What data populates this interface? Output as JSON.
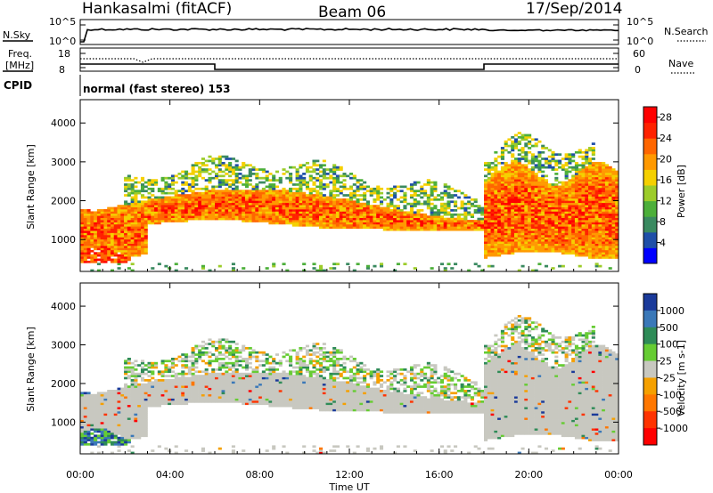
{
  "header": {
    "radar": "Hankasalmi (fitACF)",
    "beam": "Beam 06",
    "date": "17/Sep/2014"
  },
  "noise_panel": {
    "left_label": "N.Sky",
    "right_label": "N.Search",
    "left_ticks": [
      "10^5",
      "10^0"
    ],
    "right_ticks": [
      "10^5",
      "10^0"
    ]
  },
  "freq_panel": {
    "left_label_line1": "Freq.",
    "left_label_line2": "[MHz]",
    "right_label": "Nave",
    "left_ticks": [
      "18",
      "8"
    ],
    "right_ticks": [
      "60",
      "0"
    ]
  },
  "cpid_panel": {
    "label": "CPID",
    "text": "normal (fast stereo) 153"
  },
  "colors": {
    "power": [
      "#0000ff",
      "#1f4fa8",
      "#3a8a60",
      "#4caf3a",
      "#9ccc2a",
      "#f5d000",
      "#ff9900",
      "#ff6600",
      "#ff2200",
      "#ff0000"
    ],
    "velocity": [
      "#1a3a9a",
      "#3a78b8",
      "#2e8b57",
      "#66cc33",
      "#c8c8c0",
      "#f5a000",
      "#ff7700",
      "#ff3300",
      "#ff0000"
    ]
  },
  "chart_data": [
    {
      "type": "heatmap",
      "quantity": "Power",
      "xlabel": "",
      "ylabel": "Slant Range [km]",
      "xlim": [
        "00:00",
        "24:00"
      ],
      "ylim": [
        180,
        4600
      ],
      "yticks": [
        1000,
        2000,
        3000,
        4000
      ],
      "colorbar_label": "Power [dB]",
      "colorbar_ticks": [
        4,
        8,
        12,
        16,
        20,
        24,
        28
      ],
      "colorbar_range": [
        0,
        30
      ]
    },
    {
      "type": "heatmap",
      "quantity": "Velocity",
      "xlabel": "Time UT",
      "ylabel": "Slant Range [km]",
      "xticks": [
        "00:00",
        "04:00",
        "08:00",
        "12:00",
        "16:00",
        "20:00",
        "00:00"
      ],
      "xlim": [
        "00:00",
        "24:00"
      ],
      "ylim": [
        180,
        4600
      ],
      "yticks": [
        1000,
        2000,
        3000,
        4000
      ],
      "colorbar_label": "Velocity [m s-1]",
      "colorbar_ticks": [
        "1000",
        "500",
        "100",
        "25",
        "-25",
        "-100",
        "-500",
        "-1000"
      ]
    }
  ]
}
